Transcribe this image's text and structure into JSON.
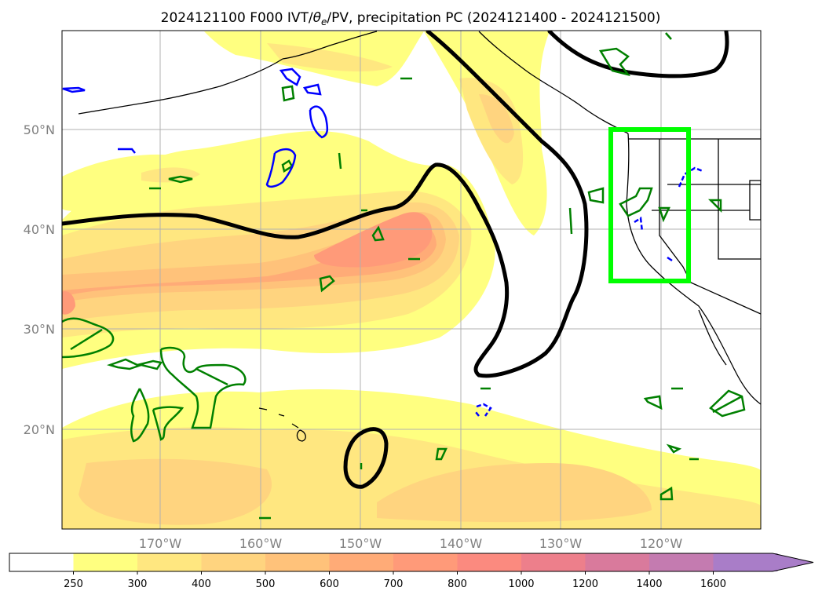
{
  "title": {
    "prefix": "2024121100 F000 IVT/",
    "theta": "θ",
    "sub": "e",
    "suffix": "/PV, precipitation PC (2024121400 - 2024121500)"
  },
  "map": {
    "lat_labels": [
      "50°N",
      "40°N",
      "30°N",
      "20°N"
    ],
    "lon_labels": [
      "170°W",
      "160°W",
      "150°W",
      "140°W",
      "130°W",
      "120°W"
    ],
    "colors": {
      "land": "#ffffff",
      "coast": "#000000",
      "grid": "#b0b0b0",
      "pv_contour": "#000000",
      "theta_e_contour": "#008000",
      "neg_contour": "#0000ff",
      "highlight_box": "#00ff00"
    }
  },
  "colorbar": {
    "ticks": [
      "250",
      "300",
      "400",
      "500",
      "600",
      "700",
      "800",
      "1000",
      "1200",
      "1400",
      "1600"
    ],
    "colors": [
      "#ffffff",
      "#ffff80",
      "#ffe780",
      "#ffd47f",
      "#ffc27a",
      "#ffab77",
      "#ff9a79",
      "#fb8a7f",
      "#ed7f8b",
      "#d97a9c",
      "#c47bb0",
      "#a97dc8"
    ],
    "extend": "max"
  }
}
